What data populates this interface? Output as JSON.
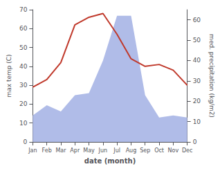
{
  "chart_data": {
    "type": "line",
    "xlabel": "date (month)",
    "ylabel": "max temp (C)",
    "y2label": "med. precipitation (kg/m2)",
    "categories": [
      "Jan",
      "Feb",
      "Mar",
      "Apr",
      "May",
      "Jun",
      "Jul",
      "Aug",
      "Sep",
      "Oct",
      "Nov",
      "Dec"
    ],
    "series": [
      {
        "type": "area",
        "color": "#b0bce8",
        "axis": "y2",
        "values": [
          13,
          18,
          15,
          23,
          24,
          40,
          62,
          62,
          23,
          12,
          13,
          12
        ]
      },
      {
        "type": "line",
        "color": "#c0392b",
        "values": [
          29,
          33,
          42,
          62,
          66,
          68,
          57,
          44,
          40,
          41,
          38,
          30
        ]
      }
    ],
    "ylim": [
      0,
      70
    ],
    "yticks": [
      0,
      10,
      20,
      30,
      40,
      50,
      60,
      70
    ],
    "y2lim": [
      0,
      65
    ],
    "y2ticks": [
      0,
      10,
      20,
      30,
      40,
      50,
      60
    ],
    "grid": false
  }
}
